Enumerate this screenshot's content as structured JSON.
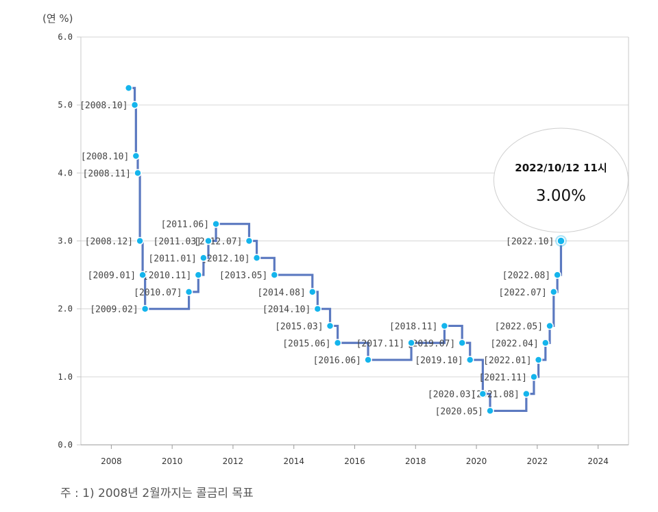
{
  "unit_label": "(연 %)",
  "footnote": "주 : 1) 2008년 2월까지는 콜금리 목표",
  "colors": {
    "line": "#5b79c0",
    "point": "#14b4ec",
    "grid": "#d6d6d6",
    "axis": "#c8c8c8"
  },
  "chart_data": {
    "type": "line",
    "step": true,
    "xlim": [
      2007,
      2025
    ],
    "ylim": [
      0,
      6
    ],
    "x_ticks": [
      2008,
      2010,
      2012,
      2014,
      2016,
      2018,
      2020,
      2022,
      2024
    ],
    "y_ticks": [
      "0.0",
      "1.0",
      "2.0",
      "3.0",
      "4.0",
      "5.0",
      "6.0"
    ],
    "grid": "horizontal",
    "points": [
      {
        "x": 2008.57,
        "y": 5.25,
        "label": ""
      },
      {
        "x": 2008.77,
        "y": 5.0,
        "label": "[2008.10]"
      },
      {
        "x": 2008.81,
        "y": 4.25,
        "label": "[2008.10]"
      },
      {
        "x": 2008.87,
        "y": 4.0,
        "label": "[2008.11]"
      },
      {
        "x": 2008.94,
        "y": 3.0,
        "label": "[2008.12]"
      },
      {
        "x": 2009.03,
        "y": 2.5,
        "label": "[2009.01]"
      },
      {
        "x": 2009.11,
        "y": 2.0,
        "label": "[2009.02]"
      },
      {
        "x": 2010.55,
        "y": 2.25,
        "label": "[2010.07]"
      },
      {
        "x": 2010.86,
        "y": 2.5,
        "label": "[2010.11]"
      },
      {
        "x": 2011.03,
        "y": 2.75,
        "label": "[2011.01]"
      },
      {
        "x": 2011.19,
        "y": 3.0,
        "label": "[2011.03]"
      },
      {
        "x": 2011.44,
        "y": 3.25,
        "label": "[2011.06]"
      },
      {
        "x": 2012.53,
        "y": 3.0,
        "label": "[2012.07]"
      },
      {
        "x": 2012.78,
        "y": 2.75,
        "label": "[2012.10]"
      },
      {
        "x": 2013.36,
        "y": 2.5,
        "label": "[2013.05]"
      },
      {
        "x": 2014.61,
        "y": 2.25,
        "label": "[2014.08]"
      },
      {
        "x": 2014.78,
        "y": 2.0,
        "label": "[2014.10]"
      },
      {
        "x": 2015.19,
        "y": 1.75,
        "label": "[2015.03]"
      },
      {
        "x": 2015.44,
        "y": 1.5,
        "label": "[2015.06]"
      },
      {
        "x": 2016.44,
        "y": 1.25,
        "label": "[2016.06]"
      },
      {
        "x": 2017.86,
        "y": 1.5,
        "label": "[2017.11]"
      },
      {
        "x": 2018.95,
        "y": 1.75,
        "label": "[2018.11]"
      },
      {
        "x": 2019.53,
        "y": 1.5,
        "label": "[2019.07]"
      },
      {
        "x": 2019.79,
        "y": 1.25,
        "label": "[2019.10]"
      },
      {
        "x": 2020.21,
        "y": 0.75,
        "label": "[2020.03]"
      },
      {
        "x": 2020.45,
        "y": 0.5,
        "label": "[2020.05]"
      },
      {
        "x": 2021.64,
        "y": 0.75,
        "label": "[2021.08]"
      },
      {
        "x": 2021.89,
        "y": 1.0,
        "label": "[2021.11]"
      },
      {
        "x": 2022.04,
        "y": 1.25,
        "label": "[2022.01]"
      },
      {
        "x": 2022.27,
        "y": 1.5,
        "label": "[2022.04]"
      },
      {
        "x": 2022.41,
        "y": 1.75,
        "label": "[2022.05]"
      },
      {
        "x": 2022.54,
        "y": 2.25,
        "label": "[2022.07]"
      },
      {
        "x": 2022.66,
        "y": 2.5,
        "label": "[2022.08]"
      },
      {
        "x": 2022.78,
        "y": 3.0,
        "label": "[2022.10]"
      }
    ],
    "tooltip": {
      "date": "2022/10/12 11시",
      "value": "3.00%"
    }
  }
}
